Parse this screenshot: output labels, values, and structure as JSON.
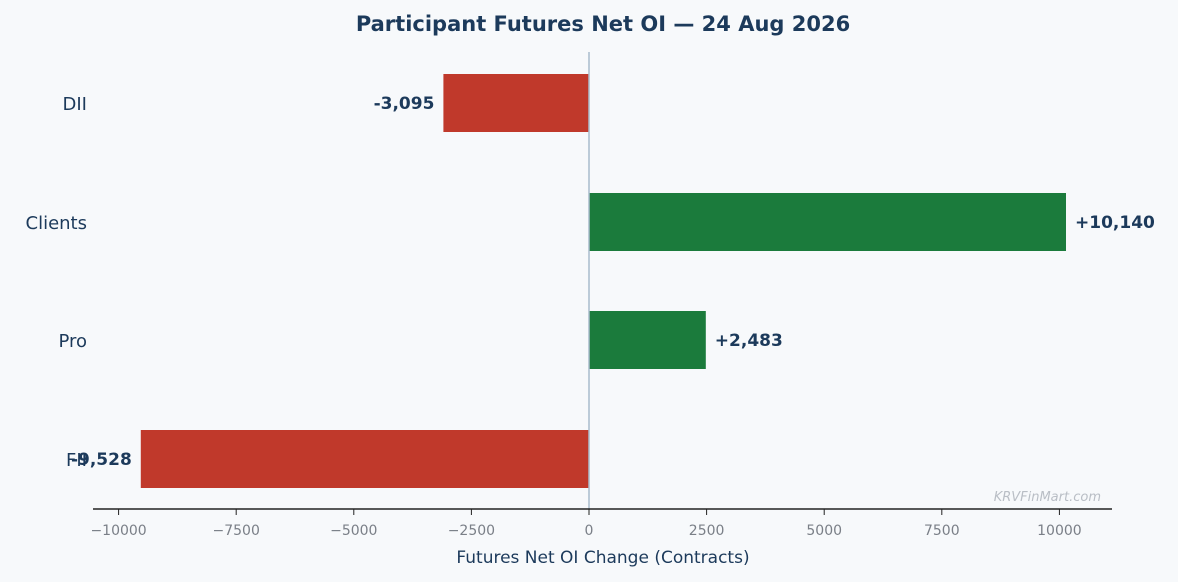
{
  "chart_data": {
    "type": "bar",
    "orientation": "horizontal",
    "title": "Participant Futures Net OI — 24 Aug 2026",
    "xlabel": "Futures Net OI Change (Contracts)",
    "ylabel": "",
    "categories": [
      "DII",
      "Clients",
      "Pro",
      "FII"
    ],
    "values": [
      -3095,
      10140,
      2483,
      -9528
    ],
    "data_labels": [
      "-3,095",
      "+10,140",
      "+2,483",
      "-9,528"
    ],
    "xlim": [
      -10500,
      11100
    ],
    "xticks": [
      -10000,
      -7500,
      -5000,
      -2500,
      0,
      2500,
      5000,
      7500,
      10000
    ],
    "xtick_labels": [
      "−10000",
      "−7500",
      "−5000",
      "−2500",
      "0",
      "2500",
      "5000",
      "7500",
      "10000"
    ],
    "colors": {
      "positive": "#1b7b3c",
      "negative": "#c0392b",
      "zero_line": "#a9bccc"
    },
    "grid": false,
    "watermark": "KRVFinMart.com"
  }
}
